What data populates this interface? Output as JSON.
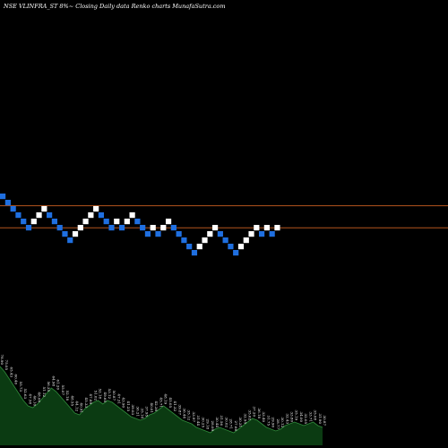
{
  "title": "NSE VLINFRA_ST 8%~ Closing Daily data Renko charts MunafaSutra.com",
  "colors": {
    "background": "#000000",
    "up_brick": "#ffffff",
    "down_brick": "#1f6fe0",
    "reference_line": "#b4541e",
    "volume_fill": "#0b3b12",
    "volume_edge": "#2f8a3a",
    "text": "#ffffff"
  },
  "chart_data": {
    "type": "renko",
    "reference_lines": [
      229.6,
      254.2
    ],
    "bricks": [
      {
        "dir": "down",
        "level": 219.1
      },
      {
        "dir": "down",
        "level": 226.1
      },
      {
        "dir": "down",
        "level": 233.1
      },
      {
        "dir": "down",
        "level": 240.1
      },
      {
        "dir": "down",
        "level": 247.1
      },
      {
        "dir": "down",
        "level": 254.1
      },
      {
        "dir": "up",
        "level": 247.1
      },
      {
        "dir": "up",
        "level": 240.1
      },
      {
        "dir": "up",
        "level": 233.1
      },
      {
        "dir": "down",
        "level": 240.1
      },
      {
        "dir": "down",
        "level": 247.1
      },
      {
        "dir": "down",
        "level": 254.1
      },
      {
        "dir": "down",
        "level": 261.1
      },
      {
        "dir": "down",
        "level": 268.1
      },
      {
        "dir": "up",
        "level": 261.1
      },
      {
        "dir": "up",
        "level": 254.1
      },
      {
        "dir": "up",
        "level": 247.1
      },
      {
        "dir": "up",
        "level": 240.1
      },
      {
        "dir": "up",
        "level": 233.1
      },
      {
        "dir": "down",
        "level": 240.1
      },
      {
        "dir": "down",
        "level": 247.1
      },
      {
        "dir": "down",
        "level": 254.1
      },
      {
        "dir": "up",
        "level": 247.1
      },
      {
        "dir": "down",
        "level": 254.1
      },
      {
        "dir": "up",
        "level": 247.1
      },
      {
        "dir": "up",
        "level": 240.1
      },
      {
        "dir": "down",
        "level": 247.1
      },
      {
        "dir": "down",
        "level": 254.1
      },
      {
        "dir": "down",
        "level": 261.1
      },
      {
        "dir": "up",
        "level": 254.1
      },
      {
        "dir": "down",
        "level": 261.1
      },
      {
        "dir": "up",
        "level": 254.1
      },
      {
        "dir": "up",
        "level": 247.1
      },
      {
        "dir": "down",
        "level": 254.1
      },
      {
        "dir": "down",
        "level": 261.1
      },
      {
        "dir": "down",
        "level": 268.1
      },
      {
        "dir": "down",
        "level": 275.1
      },
      {
        "dir": "down",
        "level": 282.1
      },
      {
        "dir": "up",
        "level": 275.1
      },
      {
        "dir": "up",
        "level": 268.1
      },
      {
        "dir": "up",
        "level": 261.1
      },
      {
        "dir": "up",
        "level": 254.1
      },
      {
        "dir": "down",
        "level": 261.1
      },
      {
        "dir": "down",
        "level": 268.1
      },
      {
        "dir": "down",
        "level": 275.1
      },
      {
        "dir": "down",
        "level": 282.1
      },
      {
        "dir": "up",
        "level": 275.1
      },
      {
        "dir": "up",
        "level": 268.1
      },
      {
        "dir": "up",
        "level": 261.1
      },
      {
        "dir": "up",
        "level": 254.1
      },
      {
        "dir": "down",
        "level": 261.1
      },
      {
        "dir": "up",
        "level": 254.1
      },
      {
        "dir": "down",
        "level": 261.1
      },
      {
        "dir": "up",
        "level": 254.1
      }
    ],
    "volume": {
      "values": [
        88,
        82,
        74,
        66,
        58,
        50,
        44,
        42,
        46,
        52,
        58,
        64,
        60,
        54,
        48,
        42,
        36,
        34,
        40,
        44,
        48,
        50,
        46,
        50,
        48,
        44,
        40,
        36,
        32,
        30,
        28,
        30,
        34,
        36,
        40,
        44,
        40,
        36,
        32,
        28,
        26,
        24,
        20,
        18,
        16,
        14,
        18,
        20,
        18,
        16,
        14,
        18,
        22,
        26,
        30,
        28,
        24,
        20,
        18,
        16,
        18,
        22,
        24,
        26,
        24,
        22,
        24,
        26,
        22,
        20
      ],
      "labels": [
        "78.90",
        "75.05",
        "65.43",
        "60.40",
        "55.73",
        "52.63",
        "47.58",
        "46.10",
        "48.00",
        "51.12",
        "56.35",
        "64.98",
        "61.20",
        "55.07",
        "52.18",
        "48.55",
        "44.12",
        "40.91",
        "45.33",
        "47.89",
        "51.02",
        "52.18",
        "49.60",
        "53.12",
        "50.87",
        "47.31",
        "43.90",
        "41.25",
        "39.03",
        "36.21",
        "35.14",
        "37.95",
        "40.01",
        "42.36",
        "45.71",
        "48.19",
        "45.05",
        "41.32",
        "39.87",
        "36.44",
        "35.12",
        "33.97",
        "31.44",
        "30.25",
        "29.18",
        "28.09",
        "30.44",
        "31.56",
        "30.02",
        "28.71",
        "27.66",
        "30.31",
        "32.95",
        "35.62",
        "37.20",
        "36.18",
        "33.40",
        "31.75",
        "29.90",
        "28.77",
        "30.12",
        "32.43",
        "33.80",
        "35.19",
        "34.00",
        "32.05",
        "33.71",
        "35.08",
        "31.90",
        "30.87"
      ]
    }
  }
}
